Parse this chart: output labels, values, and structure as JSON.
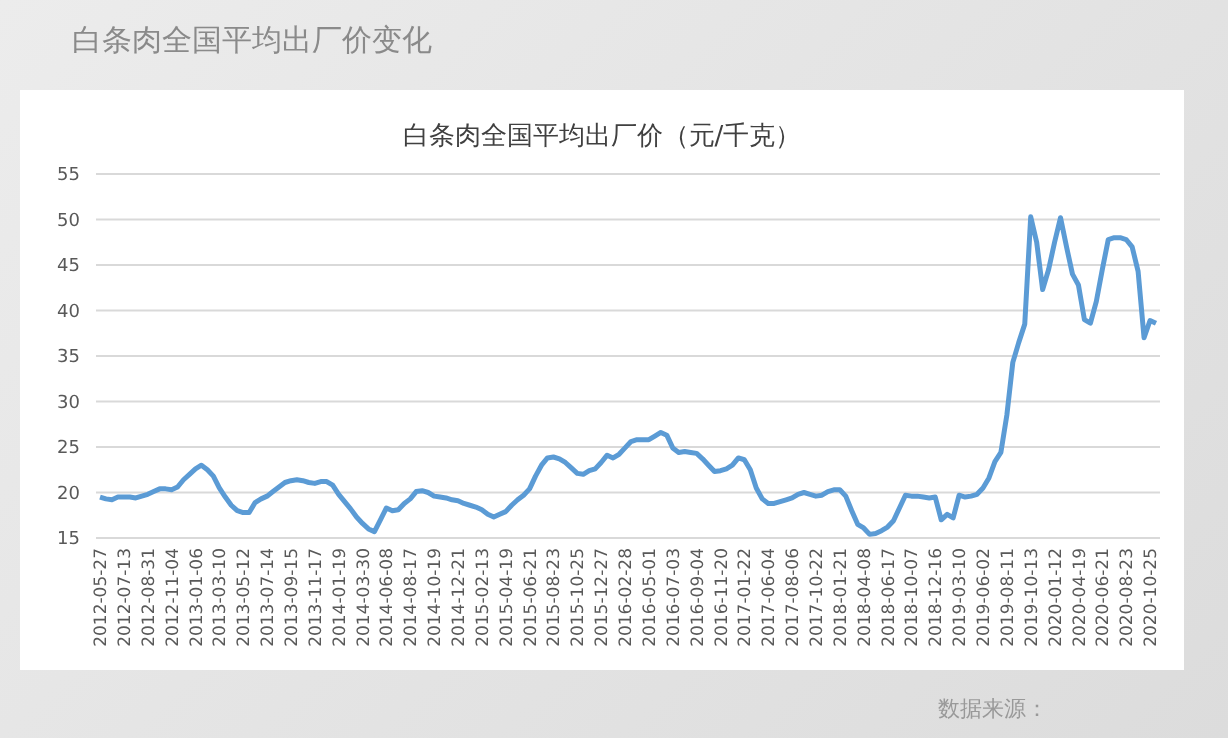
{
  "chart_data": {
    "type": "line",
    "title": "白条肉全国平均出厂价变化",
    "subtitle": "白条肉全国平均出厂价（元/千克）",
    "annotations": [
      "数据来源："
    ],
    "categories": [
      "2012-05-27",
      null,
      null,
      null,
      "2012-07-13",
      null,
      null,
      null,
      "2012-08-31",
      null,
      null,
      null,
      "2012-11-04",
      null,
      null,
      null,
      "2013-01-06",
      null,
      null,
      null,
      "2013-03-10",
      null,
      null,
      null,
      "2013-05-12",
      null,
      null,
      null,
      "2013-07-14",
      null,
      null,
      null,
      "2013-09-15",
      null,
      null,
      null,
      "2013-11-17",
      null,
      null,
      null,
      "2014-01-19",
      null,
      null,
      null,
      "2014-03-30",
      null,
      null,
      null,
      "2014-06-08",
      null,
      null,
      null,
      "2014-08-17",
      null,
      null,
      null,
      "2014-10-19",
      null,
      null,
      null,
      "2014-12-21",
      null,
      null,
      null,
      "2015-02-13",
      null,
      null,
      null,
      "2015-04-19",
      null,
      null,
      null,
      "2015-06-21",
      null,
      null,
      null,
      "2015-08-23",
      null,
      null,
      null,
      "2015-10-25",
      null,
      null,
      null,
      "2015-12-27",
      null,
      null,
      null,
      "2016-02-28",
      null,
      null,
      null,
      "2016-05-01",
      null,
      null,
      null,
      "2016-07-03",
      null,
      null,
      null,
      "2016-09-04",
      null,
      null,
      null,
      "2016-11-20",
      null,
      null,
      null,
      "2017-01-22",
      null,
      null,
      null,
      "2017-06-04",
      null,
      null,
      null,
      "2017-08-06",
      null,
      null,
      null,
      "2017-10-22",
      null,
      null,
      null,
      "2018-01-21",
      null,
      null,
      null,
      "2018-04-08",
      null,
      null,
      null,
      "2018-06-17",
      null,
      null,
      null,
      "2018-10-07",
      null,
      null,
      null,
      "2018-12-16",
      null,
      null,
      null,
      "2019-03-10",
      null,
      null,
      null,
      "2019-06-02",
      null,
      null,
      null,
      "2019-08-11",
      null,
      null,
      null,
      "2019-10-13",
      null,
      null,
      null,
      "2020-01-12",
      null,
      null,
      null,
      "2020-04-19",
      null,
      null,
      null,
      "2020-06-21",
      null,
      null,
      null,
      "2020-08-23",
      null,
      null,
      null,
      "2020-10-25",
      null
    ],
    "series": [
      {
        "color": "#5b9bd5",
        "values": [
          19.5,
          19.3,
          19.2,
          19.5,
          19.5,
          19.5,
          19.4,
          19.6,
          19.8,
          20.1,
          20.4,
          20.4,
          20.3,
          20.6,
          21.4,
          22.0,
          22.6,
          23.0,
          22.5,
          21.8,
          20.5,
          19.5,
          18.6,
          18.0,
          17.8,
          17.8,
          18.9,
          19.3,
          19.6,
          20.1,
          20.6,
          21.1,
          21.3,
          21.4,
          21.3,
          21.1,
          21.0,
          21.2,
          21.2,
          20.8,
          19.8,
          19.0,
          18.2,
          17.3,
          16.6,
          16.0,
          15.7,
          17.0,
          18.3,
          18.0,
          18.1,
          18.8,
          19.3,
          20.1,
          20.2,
          20.0,
          19.6,
          19.5,
          19.4,
          19.2,
          19.1,
          18.8,
          18.6,
          18.4,
          18.1,
          17.6,
          17.3,
          17.6,
          17.9,
          18.6,
          19.2,
          19.7,
          20.4,
          21.8,
          23.0,
          23.8,
          23.9,
          23.7,
          23.3,
          22.7,
          22.1,
          22.0,
          22.4,
          22.6,
          23.3,
          24.1,
          23.8,
          24.2,
          24.9,
          25.6,
          25.8,
          25.8,
          25.8,
          26.2,
          26.6,
          26.3,
          24.9,
          24.4,
          24.5,
          24.4,
          24.3,
          23.7,
          23.0,
          22.3,
          22.4,
          22.6,
          23.0,
          23.8,
          23.6,
          22.5,
          20.5,
          19.3,
          18.8,
          18.8,
          19.0,
          19.2,
          19.4,
          19.8,
          20.0,
          19.8,
          19.6,
          19.7,
          20.1,
          20.3,
          20.3,
          19.6,
          18.0,
          16.5,
          16.1,
          15.4,
          15.5,
          15.8,
          16.2,
          16.9,
          18.3,
          19.7,
          19.6,
          19.6,
          19.5,
          19.4,
          19.5,
          17.0,
          17.6,
          17.2,
          19.7,
          19.5,
          19.6,
          19.8,
          20.5,
          21.6,
          23.4,
          24.4,
          28.5,
          34.3,
          36.5,
          38.5,
          50.3,
          47.5,
          42.3,
          44.5,
          47.5,
          50.2,
          47.0,
          44.0,
          42.8,
          39.0,
          38.6,
          41.0,
          44.5,
          47.8,
          48.0,
          48.0,
          47.8,
          47.0,
          44.3,
          37.0,
          38.9,
          38.6
        ]
      }
    ],
    "ylim": [
      15,
      55
    ],
    "yticks": [
      15,
      20,
      25,
      30,
      35,
      40,
      45,
      50,
      55
    ],
    "grid": "y",
    "legend": false,
    "marker": "none",
    "line_style": "solid"
  }
}
